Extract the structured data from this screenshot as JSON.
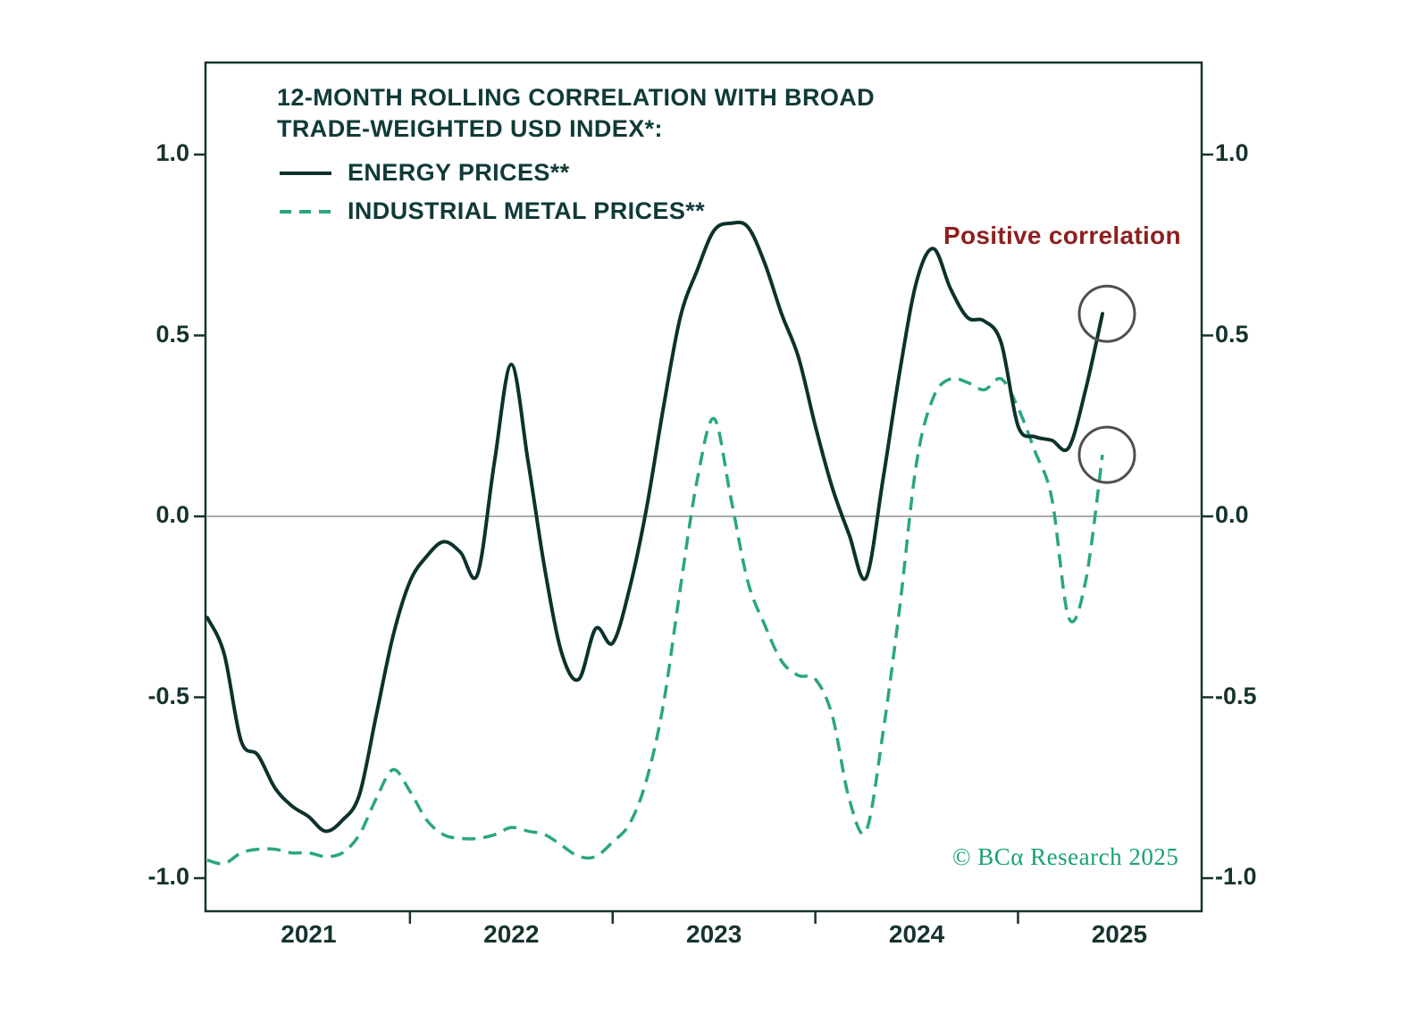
{
  "colors": {
    "background": "#ffffff",
    "energy_line": "#0d322e",
    "metals_line": "#2aa681",
    "axis": "#16332f",
    "heading": "#0f3a37",
    "annotation_red": "#8e1f1f",
    "zero_line": "#8f8f8f",
    "circle_gray": "#4f4f4f",
    "copyright_green": "#18a173"
  },
  "chart_data": {
    "type": "line",
    "title_line1": "12-MONTH ROLLING CORRELATION WITH BROAD",
    "title_line2": "TRADE-WEIGHTED USD INDEX*:",
    "annotation": "Positive correlation",
    "copyright": "© BCα Research 2025",
    "x_tick_labels": [
      "2021",
      "2022",
      "2023",
      "2024",
      "2025"
    ],
    "y_tick_labels": [
      "1.0",
      "0.5",
      "0.0",
      "-0.5",
      "-1.0"
    ],
    "y_ticks": [
      1.0,
      0.5,
      0.0,
      -0.5,
      -1.0
    ],
    "ylim": [
      -1.0,
      1.0
    ],
    "x_range": [
      "2021-01",
      "2025-06"
    ],
    "frequency": "monthly",
    "grid": false,
    "legend_position": "top-left-inside",
    "series": [
      {
        "name": "ENERGY PRICES**",
        "line_style": "solid",
        "color": "#0d322e",
        "values": [
          -0.28,
          -0.38,
          -0.62,
          -0.66,
          -0.75,
          -0.8,
          -0.83,
          -0.87,
          -0.84,
          -0.77,
          -0.55,
          -0.33,
          -0.18,
          -0.11,
          -0.07,
          -0.1,
          -0.16,
          0.15,
          0.42,
          0.15,
          -0.15,
          -0.38,
          -0.45,
          -0.31,
          -0.35,
          -0.2,
          0.02,
          0.3,
          0.55,
          0.68,
          0.79,
          0.81,
          0.8,
          0.7,
          0.56,
          0.44,
          0.25,
          0.08,
          -0.05,
          -0.17,
          0.1,
          0.4,
          0.65,
          0.74,
          0.63,
          0.55,
          0.54,
          0.48,
          0.25,
          0.22,
          0.21,
          0.19,
          0.35,
          0.56
        ]
      },
      {
        "name": "INDUSTRIAL METAL PRICES**",
        "line_style": "dashed",
        "color": "#2aa681",
        "values": [
          -0.95,
          -0.96,
          -0.93,
          -0.92,
          -0.92,
          -0.93,
          -0.93,
          -0.94,
          -0.93,
          -0.88,
          -0.78,
          -0.7,
          -0.76,
          -0.84,
          -0.88,
          -0.89,
          -0.89,
          -0.88,
          -0.86,
          -0.87,
          -0.88,
          -0.91,
          -0.94,
          -0.94,
          -0.9,
          -0.85,
          -0.73,
          -0.52,
          -0.2,
          0.1,
          0.27,
          0.05,
          -0.18,
          -0.3,
          -0.4,
          -0.44,
          -0.45,
          -0.55,
          -0.78,
          -0.87,
          -0.6,
          -0.25,
          0.15,
          0.33,
          0.38,
          0.37,
          0.35,
          0.38,
          0.3,
          0.18,
          0.05,
          -0.28,
          -0.18,
          0.17
        ]
      }
    ],
    "highlight_circles": [
      "energy-series-end",
      "metals-series-end"
    ]
  }
}
